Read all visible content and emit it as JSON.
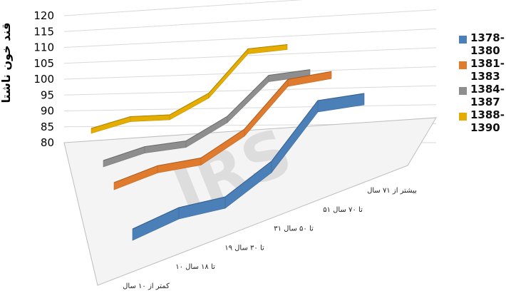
{
  "chart_data": {
    "type": "line",
    "subtype": "3d-ribbon",
    "title": "",
    "ylabel": "قند خون ناشتا",
    "xlabel": "",
    "ylim": [
      80,
      120
    ],
    "yticks": [
      80,
      85,
      90,
      95,
      100,
      105,
      110,
      115,
      120
    ],
    "grid": true,
    "legend_position": "right",
    "categories": [
      "کمتر از ۱۰ سال",
      "۱۰ تا ۱۸ سال",
      "۱۹ تا ۳۰ سال",
      "۳۱ تا ۵۰ سال",
      "۵۱ تا ۷۰ سال",
      "بیشتر از ۷۱ سال"
    ],
    "series": [
      {
        "name": "1378-1380",
        "color": "#4a7fb8",
        "values": [
          86,
          89,
          89,
          96,
          110,
          109
        ]
      },
      {
        "name": "1381-1383",
        "color": "#e07b2e",
        "values": [
          89,
          92,
          92,
          99,
          113,
          113
        ]
      },
      {
        "name": "1384-1387",
        "color": "#8e8e8e",
        "values": [
          90,
          93,
          93,
          100,
          113,
          113
        ]
      },
      {
        "name": "1388-1390",
        "color": "#e5ad00",
        "values": [
          89,
          92,
          91,
          98,
          114,
          114
        ]
      }
    ]
  }
}
